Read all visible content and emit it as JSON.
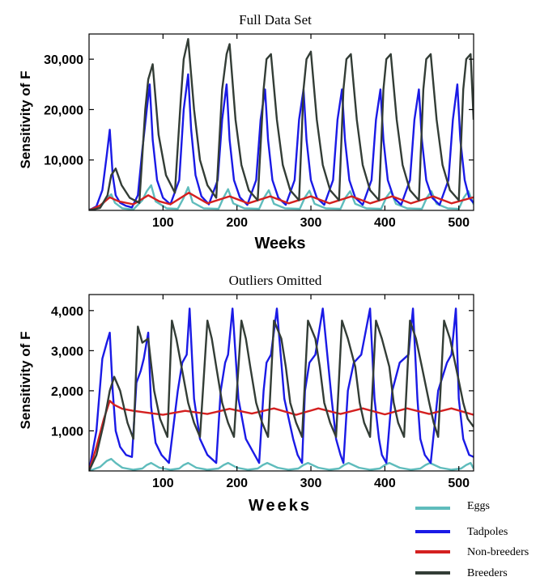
{
  "legend": [
    {
      "label": "Eggs",
      "color": "#5fbcbc"
    },
    {
      "label": "Tadpoles",
      "color": "#1a1ae6"
    },
    {
      "label": "Non-breeders",
      "color": "#d42020"
    },
    {
      "label": "Breeders",
      "color": "#333d36"
    }
  ],
  "chart_data": [
    {
      "type": "line",
      "title": "Full Data Set",
      "xlabel": "Weeks",
      "ylabel": "Sensitivity of F",
      "xlim": [
        0,
        520
      ],
      "ylim": [
        0,
        35000
      ],
      "xticks": [
        100,
        200,
        300,
        400,
        500
      ],
      "xtick_labels": [
        "100",
        "200",
        "300",
        "400",
        "500"
      ],
      "yticks": [
        10000,
        20000,
        30000
      ],
      "ytick_labels": [
        "10,000",
        "20,000",
        "30,000"
      ],
      "grid": false,
      "series": [
        {
          "name": "Eggs",
          "color": "#5fbcbc",
          "x": [
            0,
            15,
            25,
            30,
            35,
            45,
            60,
            72,
            78,
            84,
            90,
            105,
            120,
            128,
            134,
            140,
            155,
            175,
            182,
            188,
            195,
            210,
            230,
            237,
            243,
            250,
            265,
            285,
            292,
            298,
            305,
            320,
            340,
            347,
            353,
            360,
            375,
            395,
            402,
            408,
            415,
            430,
            450,
            457,
            463,
            470,
            485,
            500,
            507,
            513,
            520
          ],
          "y": [
            200,
            600,
            2500,
            3200,
            1500,
            400,
            200,
            2000,
            3800,
            5000,
            1800,
            400,
            300,
            2500,
            4600,
            1600,
            400,
            300,
            2600,
            4200,
            1400,
            400,
            300,
            2600,
            4000,
            1300,
            400,
            300,
            2600,
            3900,
            1300,
            400,
            300,
            2600,
            3800,
            1300,
            400,
            300,
            2600,
            3800,
            1300,
            400,
            300,
            2600,
            3800,
            1300,
            400,
            300,
            2600,
            3800,
            1200
          ]
        },
        {
          "name": "Tadpoles",
          "color": "#1a1ae6",
          "x": [
            0,
            10,
            18,
            24,
            28,
            32,
            36,
            42,
            50,
            58,
            66,
            72,
            78,
            82,
            86,
            92,
            100,
            110,
            122,
            128,
            134,
            138,
            144,
            152,
            162,
            174,
            180,
            186,
            190,
            196,
            204,
            214,
            226,
            232,
            238,
            242,
            248,
            256,
            266,
            278,
            284,
            290,
            294,
            300,
            308,
            318,
            330,
            336,
            342,
            346,
            352,
            360,
            370,
            382,
            388,
            394,
            398,
            404,
            412,
            422,
            434,
            440,
            446,
            450,
            456,
            464,
            474,
            486,
            492,
            498,
            502,
            508,
            514,
            520
          ],
          "y": [
            0,
            800,
            4000,
            11000,
            16000,
            7000,
            3000,
            1500,
            900,
            600,
            3000,
            12000,
            20000,
            25000,
            14000,
            6000,
            2500,
            1200,
            6000,
            20000,
            27000,
            16000,
            7000,
            2800,
            1200,
            6000,
            18000,
            25000,
            14000,
            6000,
            2600,
            1100,
            6000,
            18000,
            24000,
            14000,
            6000,
            2500,
            1100,
            6000,
            18000,
            24000,
            14000,
            6000,
            2500,
            1100,
            6000,
            18000,
            24000,
            14000,
            6000,
            2500,
            1100,
            6000,
            18000,
            24000,
            14000,
            6000,
            2500,
            1100,
            6000,
            18000,
            24000,
            14000,
            6000,
            2500,
            1100,
            6000,
            18000,
            25000,
            14000,
            6000,
            2500,
            1500
          ]
        },
        {
          "name": "Non-breeders",
          "color": "#d42020",
          "x": [
            0,
            15,
            28,
            40,
            60,
            80,
            95,
            110,
            135,
            160,
            190,
            215,
            245,
            270,
            300,
            325,
            355,
            380,
            410,
            435,
            465,
            490,
            520
          ],
          "y": [
            0,
            1000,
            2600,
            1800,
            1200,
            3000,
            1800,
            1200,
            3500,
            1400,
            2800,
            1400,
            2800,
            1400,
            2800,
            1400,
            2800,
            1400,
            2800,
            1400,
            2800,
            1400,
            2600
          ]
        },
        {
          "name": "Breeders",
          "color": "#333d36",
          "x": [
            0,
            15,
            25,
            30,
            36,
            44,
            55,
            68,
            76,
            80,
            86,
            94,
            104,
            116,
            124,
            128,
            134,
            142,
            150,
            160,
            172,
            180,
            186,
            190,
            198,
            206,
            216,
            228,
            236,
            240,
            246,
            254,
            262,
            272,
            284,
            290,
            294,
            300,
            308,
            316,
            326,
            338,
            344,
            348,
            354,
            362,
            370,
            380,
            392,
            398,
            402,
            408,
            416,
            424,
            434,
            446,
            452,
            456,
            462,
            470,
            478,
            488,
            500,
            506,
            510,
            516,
            520
          ],
          "y": [
            0,
            500,
            3000,
            7000,
            8300,
            5000,
            2500,
            1500,
            20000,
            26000,
            29000,
            15000,
            7000,
            3500,
            22000,
            30000,
            34000,
            20000,
            10000,
            5000,
            2500,
            24000,
            31000,
            33000,
            18000,
            9000,
            4000,
            2000,
            24000,
            30000,
            31000,
            18000,
            9000,
            4000,
            2000,
            24000,
            30000,
            31500,
            18000,
            9000,
            4000,
            2000,
            24000,
            30000,
            31000,
            18000,
            9000,
            4000,
            2000,
            24000,
            30000,
            31000,
            18000,
            9000,
            4000,
            2000,
            24000,
            30000,
            31000,
            18000,
            9000,
            4000,
            2000,
            24000,
            30000,
            31000,
            18000
          ]
        }
      ]
    },
    {
      "type": "line",
      "title": "Outliers Omitted",
      "xlabel": "Weeks",
      "ylabel": "Sensitivity of F",
      "xlim": [
        0,
        520
      ],
      "ylim": [
        0,
        4400
      ],
      "xticks": [
        100,
        200,
        300,
        400,
        500
      ],
      "xtick_labels": [
        "100",
        "200",
        "300",
        "400",
        "500"
      ],
      "yticks": [
        1000,
        2000,
        3000,
        4000
      ],
      "ytick_labels": [
        "1,000",
        "2,000",
        "3,000",
        "4,000"
      ],
      "grid": false,
      "series": [
        {
          "name": "Eggs",
          "color": "#5fbcbc",
          "x": [
            0,
            15,
            24,
            30,
            36,
            45,
            60,
            72,
            78,
            84,
            95,
            110,
            122,
            128,
            134,
            145,
            160,
            175,
            182,
            188,
            200,
            215,
            228,
            235,
            241,
            255,
            270,
            283,
            290,
            296,
            310,
            325,
            338,
            345,
            351,
            365,
            380,
            393,
            400,
            406,
            420,
            435,
            448,
            455,
            461,
            475,
            490,
            503,
            510,
            516,
            520
          ],
          "y": [
            0,
            100,
            250,
            300,
            200,
            80,
            30,
            60,
            150,
            200,
            80,
            30,
            60,
            150,
            200,
            80,
            30,
            60,
            150,
            200,
            80,
            30,
            60,
            150,
            200,
            80,
            30,
            60,
            150,
            200,
            80,
            30,
            60,
            150,
            200,
            80,
            30,
            60,
            150,
            200,
            80,
            30,
            60,
            150,
            200,
            80,
            30,
            60,
            150,
            200,
            60
          ]
        },
        {
          "name": "Tadpoles",
          "color": "#1a1ae6",
          "x": [
            0,
            10,
            18,
            24,
            28,
            32,
            36,
            42,
            50,
            58,
            64,
            70,
            74,
            80,
            84,
            90,
            98,
            108,
            120,
            126,
            132,
            136,
            142,
            150,
            160,
            172,
            178,
            184,
            188,
            194,
            202,
            212,
            224,
            230,
            236,
            240,
            246,
            254,
            264,
            276,
            282,
            288,
            292,
            298,
            306,
            316,
            328,
            334,
            340,
            344,
            350,
            358,
            368,
            380,
            386,
            392,
            396,
            402,
            410,
            420,
            432,
            438,
            444,
            448,
            454,
            462,
            472,
            484,
            490,
            496,
            500,
            506,
            514,
            520
          ],
          "y": [
            0,
            1000,
            2800,
            3200,
            3450,
            2000,
            1000,
            600,
            400,
            350,
            2200,
            2500,
            2800,
            3450,
            1600,
            700,
            400,
            200,
            2000,
            2700,
            2900,
            4050,
            1800,
            800,
            400,
            200,
            2000,
            2700,
            2900,
            4050,
            1800,
            800,
            400,
            200,
            2000,
            2700,
            2900,
            4050,
            1800,
            800,
            400,
            200,
            2000,
            2700,
            2900,
            4050,
            1800,
            800,
            400,
            200,
            2000,
            2700,
            2900,
            4050,
            1800,
            800,
            400,
            200,
            2000,
            2700,
            2900,
            4050,
            1800,
            800,
            400,
            200,
            2000,
            2700,
            2900,
            4050,
            1800,
            800,
            400,
            350
          ]
        },
        {
          "name": "Non-breeders",
          "color": "#d42020",
          "x": [
            0,
            10,
            20,
            28,
            34,
            45,
            60,
            80,
            100,
            130,
            160,
            190,
            220,
            250,
            280,
            310,
            340,
            370,
            400,
            430,
            460,
            490,
            520
          ],
          "y": [
            0,
            600,
            1300,
            1750,
            1650,
            1550,
            1500,
            1450,
            1400,
            1500,
            1420,
            1550,
            1430,
            1560,
            1400,
            1560,
            1420,
            1560,
            1410,
            1560,
            1420,
            1560,
            1400
          ]
        },
        {
          "name": "Breeders",
          "color": "#333d36",
          "x": [
            0,
            10,
            20,
            28,
            34,
            42,
            52,
            60,
            66,
            72,
            80,
            88,
            96,
            106,
            112,
            118,
            126,
            134,
            142,
            150,
            160,
            166,
            172,
            180,
            188,
            196,
            206,
            212,
            218,
            226,
            234,
            242,
            250,
            260,
            266,
            272,
            280,
            288,
            296,
            306,
            312,
            318,
            326,
            334,
            342,
            350,
            360,
            366,
            372,
            380,
            388,
            396,
            406,
            412,
            418,
            426,
            434,
            442,
            450,
            460,
            466,
            472,
            480,
            488,
            496,
            506,
            512,
            520
          ],
          "y": [
            0,
            400,
            1200,
            2000,
            2350,
            2000,
            1200,
            800,
            3600,
            3200,
            3300,
            2000,
            1300,
            850,
            3750,
            3300,
            2500,
            1700,
            1200,
            850,
            3750,
            3300,
            2600,
            1700,
            1200,
            850,
            3750,
            3300,
            2600,
            1700,
            1200,
            850,
            3750,
            3300,
            2600,
            1700,
            1200,
            850,
            3750,
            3300,
            2600,
            1700,
            1200,
            850,
            3750,
            3300,
            2600,
            1700,
            1200,
            850,
            3750,
            3300,
            2600,
            1700,
            1200,
            850,
            3750,
            3300,
            2600,
            1700,
            1200,
            850,
            3750,
            3300,
            2600,
            1700,
            1300,
            1100
          ]
        }
      ]
    }
  ]
}
